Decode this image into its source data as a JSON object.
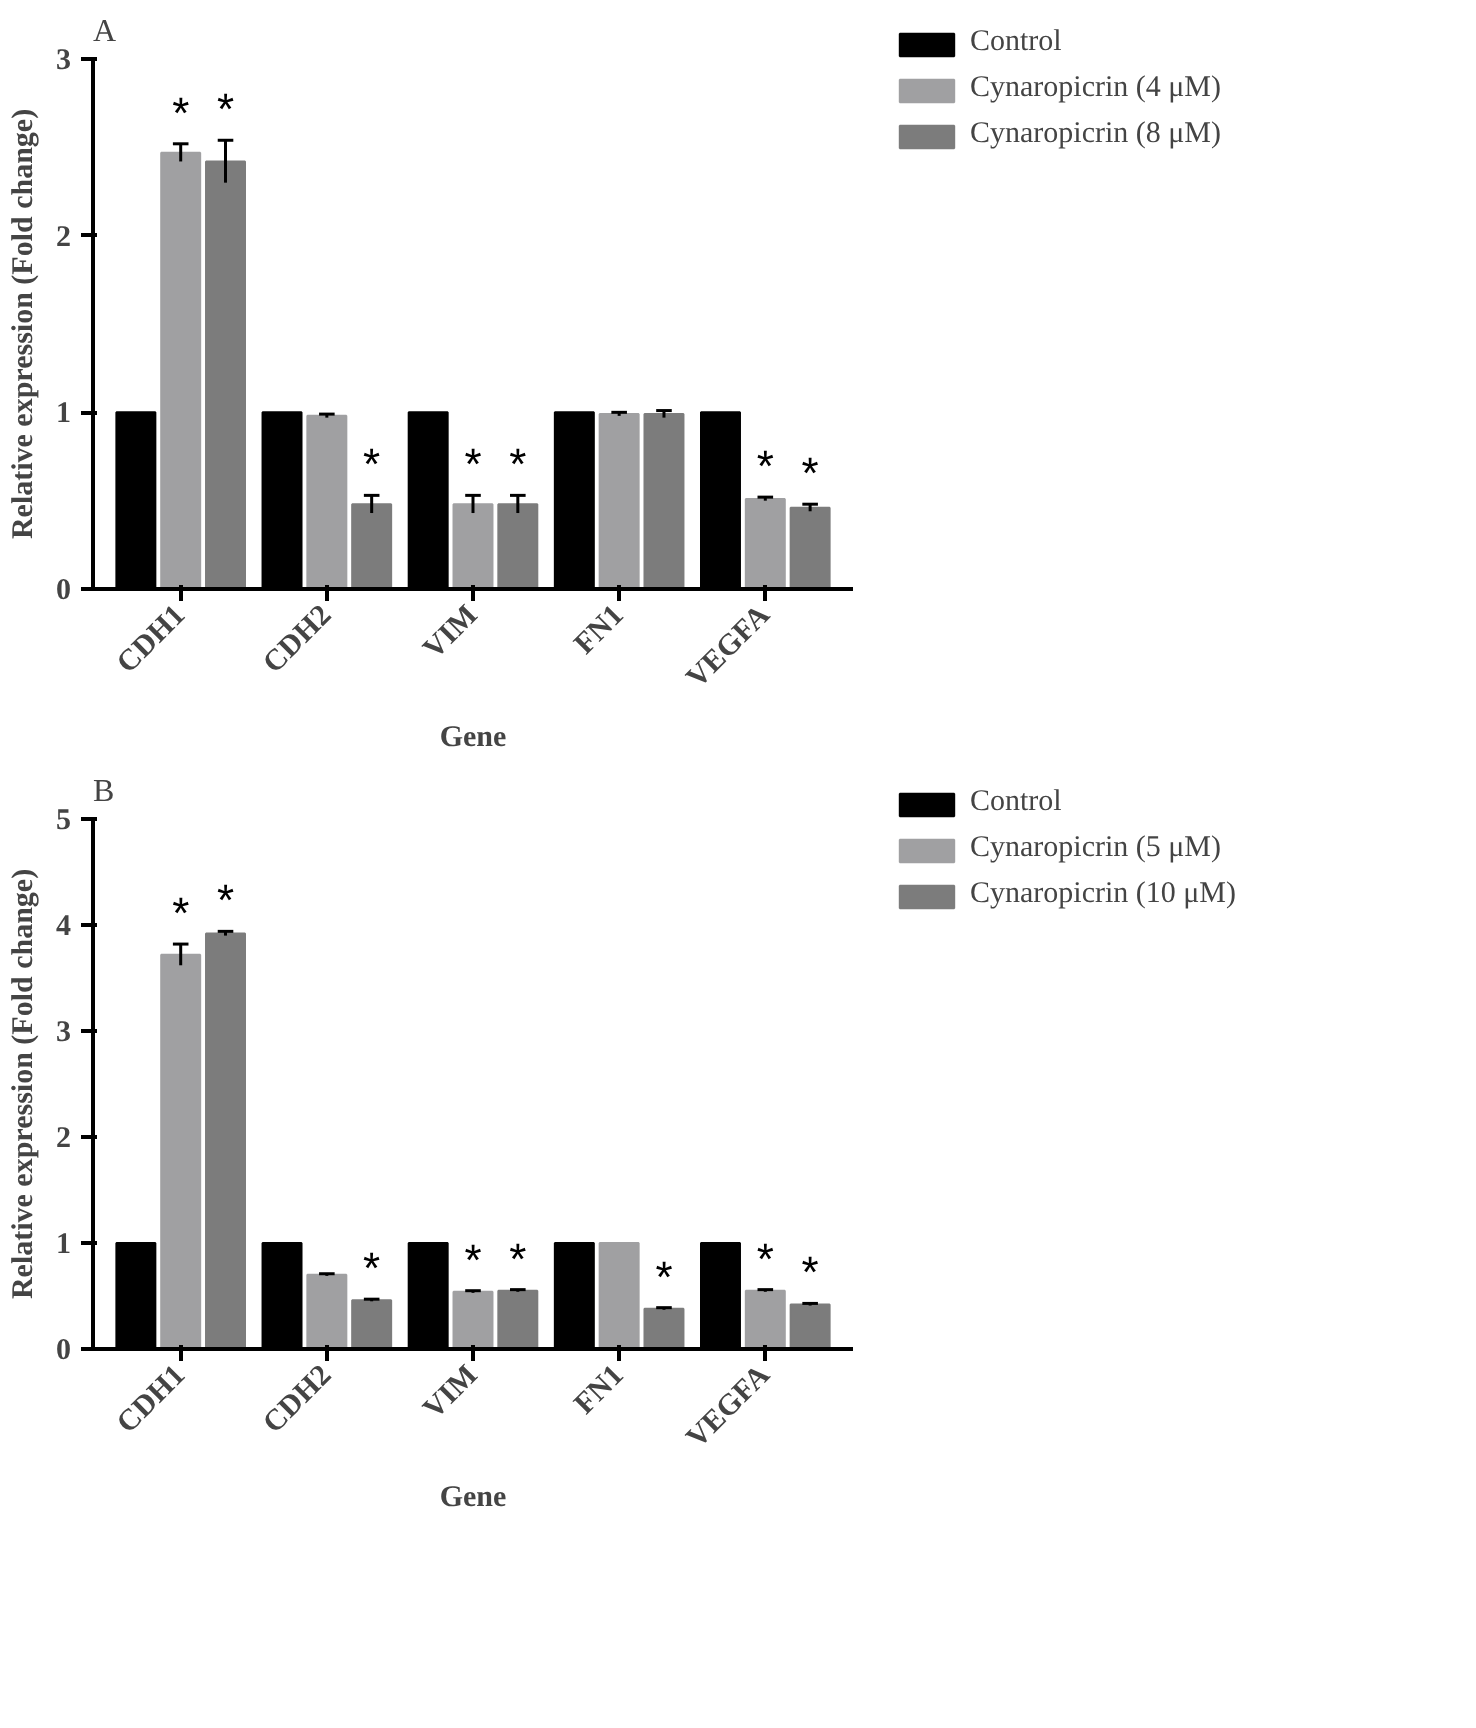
{
  "chart_data": [
    {
      "type": "bar",
      "title": "A",
      "xlabel": "Gene",
      "ylabel": "Relative expression (Fold change)",
      "categories": [
        "CDH1",
        "CDH2",
        "VIM",
        "FN1",
        "VEGFA"
      ],
      "ylim": [
        0,
        3
      ],
      "yticks": [
        0,
        1,
        2,
        3
      ],
      "grid": false,
      "legend": "top right",
      "series": [
        {
          "name": "Control",
          "color": "#000000",
          "values": [
            1.0,
            1.0,
            1.0,
            1.0,
            1.0
          ]
        },
        {
          "name": "Cynaropicrin (4 μM)",
          "color": "#a0a0a2",
          "values": [
            2.47,
            0.98,
            0.48,
            0.99,
            0.51
          ],
          "errors": [
            0.05,
            0.01,
            0.05,
            0.01,
            0.01
          ],
          "value_labels": [
            "*",
            null,
            "*",
            null,
            "*"
          ]
        },
        {
          "name": "Cynaropicrin (8 μM)",
          "color": "#7c7c7c",
          "values": [
            2.42,
            0.48,
            0.48,
            0.99,
            0.46
          ],
          "errors": [
            0.12,
            0.05,
            0.05,
            0.02,
            0.02
          ],
          "value_labels": [
            "*",
            "*",
            "*",
            null,
            "*"
          ]
        }
      ]
    },
    {
      "type": "bar",
      "title": "B",
      "xlabel": "Gene",
      "ylabel": "Relative expression (Fold change)",
      "categories": [
        "CDH1",
        "CDH2",
        "VIM",
        "FN1",
        "VEGFA"
      ],
      "ylim": [
        0,
        5
      ],
      "yticks": [
        0,
        1,
        2,
        3,
        4,
        5
      ],
      "grid": false,
      "legend": "top right",
      "series": [
        {
          "name": "Control",
          "color": "#000000",
          "values": [
            1.0,
            1.0,
            1.0,
            1.0,
            1.0
          ]
        },
        {
          "name": "Cynaropicrin (5 μM)",
          "color": "#a0a0a2",
          "values": [
            3.72,
            0.7,
            0.54,
            1.0,
            0.55
          ],
          "errors": [
            0.1,
            0.01,
            0.01,
            null,
            0.01
          ],
          "value_labels": [
            "*",
            null,
            "*",
            null,
            "*"
          ]
        },
        {
          "name": "Cynaropicrin (10 μM)",
          "color": "#7c7c7c",
          "values": [
            3.92,
            0.46,
            0.55,
            0.38,
            0.42
          ],
          "errors": [
            0.02,
            0.01,
            0.01,
            0.01,
            0.01
          ],
          "value_labels": [
            "*",
            "*",
            "*",
            "*",
            "*"
          ]
        }
      ]
    }
  ]
}
